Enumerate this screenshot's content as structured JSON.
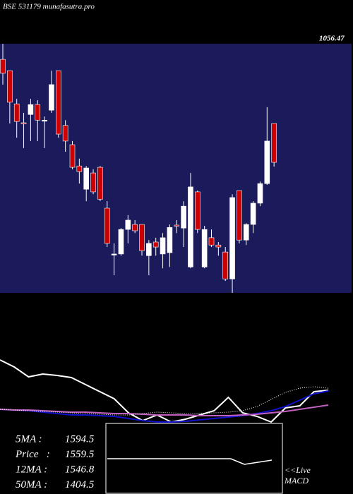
{
  "chart_data": {
    "type": "candlestick",
    "title": "BSE 531179 munafasutra.pro",
    "price_label": "1056.47",
    "ylim": [
      1150,
      1900
    ],
    "up_color": "#ffffff",
    "down_color": "#cc0000",
    "panel_color": "#1b1b5c",
    "candles": [
      {
        "o": 1853,
        "h": 1900,
        "l": 1777,
        "c": 1811
      },
      {
        "o": 1819,
        "h": 1819,
        "l": 1660,
        "c": 1724
      },
      {
        "o": 1719,
        "h": 1734,
        "l": 1617,
        "c": 1666
      },
      {
        "o": 1662,
        "h": 1692,
        "l": 1586,
        "c": 1660
      },
      {
        "o": 1687,
        "h": 1734,
        "l": 1607,
        "c": 1717
      },
      {
        "o": 1717,
        "h": 1730,
        "l": 1607,
        "c": 1670
      },
      {
        "o": 1670,
        "h": 1681,
        "l": 1586,
        "c": 1670
      },
      {
        "o": 1700,
        "h": 1819,
        "l": 1692,
        "c": 1777
      },
      {
        "o": 1819,
        "h": 1819,
        "l": 1617,
        "c": 1628
      },
      {
        "o": 1654,
        "h": 1670,
        "l": 1575,
        "c": 1607
      },
      {
        "o": 1596,
        "h": 1607,
        "l": 1522,
        "c": 1528
      },
      {
        "o": 1532,
        "h": 1554,
        "l": 1479,
        "c": 1515
      },
      {
        "o": 1462,
        "h": 1532,
        "l": 1426,
        "c": 1526
      },
      {
        "o": 1511,
        "h": 1522,
        "l": 1447,
        "c": 1454
      },
      {
        "o": 1528,
        "h": 1532,
        "l": 1426,
        "c": 1432
      },
      {
        "o": 1405,
        "h": 1426,
        "l": 1288,
        "c": 1299
      },
      {
        "o": 1267,
        "h": 1299,
        "l": 1203,
        "c": 1267
      },
      {
        "o": 1267,
        "h": 1345,
        "l": 1262,
        "c": 1341
      },
      {
        "o": 1341,
        "h": 1384,
        "l": 1299,
        "c": 1369
      },
      {
        "o": 1356,
        "h": 1369,
        "l": 1330,
        "c": 1337
      },
      {
        "o": 1356,
        "h": 1356,
        "l": 1262,
        "c": 1277
      },
      {
        "o": 1262,
        "h": 1309,
        "l": 1203,
        "c": 1299
      },
      {
        "o": 1303,
        "h": 1316,
        "l": 1262,
        "c": 1288
      },
      {
        "o": 1267,
        "h": 1330,
        "l": 1224,
        "c": 1316
      },
      {
        "o": 1271,
        "h": 1356,
        "l": 1228,
        "c": 1347
      },
      {
        "o": 1354,
        "h": 1369,
        "l": 1330,
        "c": 1352
      },
      {
        "o": 1345,
        "h": 1426,
        "l": 1288,
        "c": 1411
      },
      {
        "o": 1228,
        "h": 1511,
        "l": 1224,
        "c": 1469
      },
      {
        "o": 1454,
        "h": 1458,
        "l": 1330,
        "c": 1341
      },
      {
        "o": 1228,
        "h": 1352,
        "l": 1224,
        "c": 1341
      },
      {
        "o": 1316,
        "h": 1341,
        "l": 1288,
        "c": 1294
      },
      {
        "o": 1294,
        "h": 1303,
        "l": 1262,
        "c": 1288
      },
      {
        "o": 1273,
        "h": 1288,
        "l": 1186,
        "c": 1192
      },
      {
        "o": 1192,
        "h": 1447,
        "l": 1150,
        "c": 1437
      },
      {
        "o": 1458,
        "h": 1458,
        "l": 1299,
        "c": 1309
      },
      {
        "o": 1309,
        "h": 1360,
        "l": 1294,
        "c": 1356
      },
      {
        "o": 1356,
        "h": 1426,
        "l": 1330,
        "c": 1420
      },
      {
        "o": 1420,
        "h": 1485,
        "l": 1411,
        "c": 1479
      },
      {
        "o": 1479,
        "h": 1709,
        "l": 1475,
        "c": 1607
      },
      {
        "o": 1660,
        "h": 1660,
        "l": 1530,
        "c": 1543
      }
    ],
    "ma_panel": {
      "ylim": [
        0,
        100
      ],
      "series": [
        {
          "color": "#ffffff",
          "style": "solid",
          "values": [
            90,
            80,
            66,
            70,
            68,
            65,
            55,
            45,
            35,
            15,
            4,
            12,
            2,
            6,
            12,
            18,
            37,
            15,
            10,
            2,
            22,
            25,
            45,
            47
          ]
        },
        {
          "color": "#1010cc",
          "style": "solid",
          "values": [
            20,
            19,
            18,
            16,
            14,
            12,
            12,
            11,
            10,
            7,
            4,
            2,
            2,
            3,
            5,
            7,
            9,
            11,
            14,
            18,
            24,
            33,
            42,
            46
          ]
        },
        {
          "color": "#c060c0",
          "style": "solid",
          "values": [
            20,
            19,
            19,
            18,
            17,
            16,
            16,
            15,
            14,
            14,
            13,
            12,
            12,
            12,
            11,
            11,
            11,
            12,
            13,
            15,
            17,
            20,
            23,
            26
          ]
        },
        {
          "color": "#ffffff",
          "style": "dotted",
          "values": [
            20,
            19,
            18,
            17,
            16,
            15,
            14,
            13,
            12,
            12,
            14,
            16,
            15,
            14,
            14,
            15,
            16,
            18,
            24,
            34,
            44,
            50,
            52,
            50
          ]
        }
      ]
    },
    "stats": [
      {
        "label": "5MA :",
        "value": 1594.5
      },
      {
        "label": "Price   :",
        "value": 1559.5
      },
      {
        "label": "12MA :",
        "value": 1546.8
      },
      {
        "label": "50MA :",
        "value": 1404.5
      }
    ],
    "macd": {
      "ylim": [
        0,
        100
      ],
      "values": [
        50,
        50,
        50,
        50,
        50,
        50,
        50,
        50,
        50,
        50,
        42,
        45,
        48
      ],
      "label_lines": [
        "<<Live",
        "MACD"
      ]
    }
  }
}
